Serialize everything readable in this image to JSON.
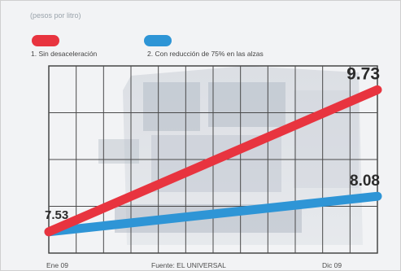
{
  "unit_label": "(pesos por litro)",
  "legend": [
    {
      "label": "1. Sin desaceleración",
      "color": "#e8343f"
    },
    {
      "label": "2. Con reducción de 75% en las alzas",
      "color": "#2e95d6"
    }
  ],
  "footer": {
    "start_label": "Ene 09",
    "source": "Fuente: EL UNIVERSAL",
    "end_label": "Dic 09"
  },
  "chart_data": {
    "type": "line",
    "title": "",
    "xlabel": "",
    "ylabel": "",
    "x": [
      "Ene 09",
      "Dic 09"
    ],
    "ylim": [
      7.2,
      10.1
    ],
    "grid": true,
    "legend_position": "top-left",
    "series": [
      {
        "name": "1. Sin desaceleración",
        "color": "#e8343f",
        "values": [
          7.53,
          9.73
        ]
      },
      {
        "name": "2. Con reducción de 75% en las alzas",
        "color": "#2e95d6",
        "values": [
          7.53,
          8.08
        ]
      }
    ],
    "annotations": [
      {
        "text": "7.53",
        "series": 0,
        "point": 0
      },
      {
        "text": "9.73",
        "series": 0,
        "point": 1
      },
      {
        "text": "8.08",
        "series": 1,
        "point": 1
      }
    ]
  }
}
